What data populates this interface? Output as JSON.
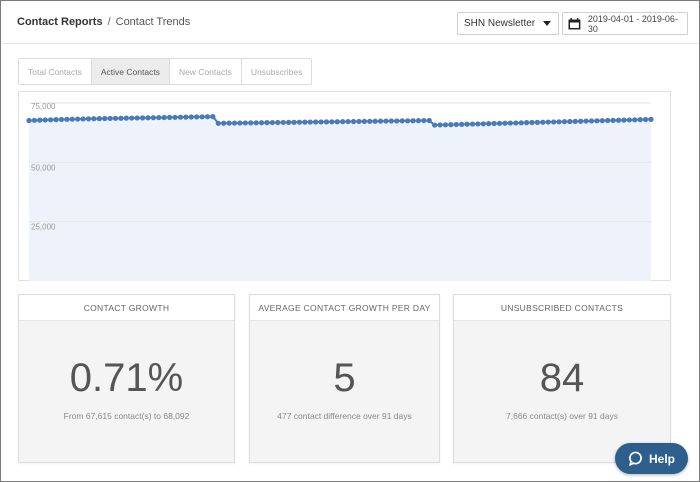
{
  "breadcrumb": {
    "root": "Contact Reports",
    "separator": "/",
    "current": "Contact Trends"
  },
  "filters": {
    "list_selected": "SHN Newsletter",
    "date_range": "2019-04-01 - 2019-06-30"
  },
  "tabs": [
    {
      "label": "Total Contacts",
      "active": false
    },
    {
      "label": "Active Contacts",
      "active": true
    },
    {
      "label": "New Contacts",
      "active": false
    },
    {
      "label": "Unsubscribes",
      "active": false
    }
  ],
  "chart_data": {
    "type": "line",
    "ylim": [
      0,
      75000
    ],
    "yticks": [
      "75,000",
      "50,000",
      "25,000"
    ],
    "ytick_values": [
      75000,
      50000,
      25000
    ],
    "series": [
      {
        "values": [
          67615,
          67700,
          67780,
          67850,
          67920,
          67990,
          68060,
          68120,
          68180,
          68230,
          68280,
          68330,
          68380,
          68420,
          68460,
          68500,
          68540,
          68580,
          68620,
          68660,
          68700,
          68740,
          68780,
          68820,
          68860,
          68900,
          68940,
          68980,
          69020,
          69060,
          69100,
          69140,
          69180,
          69220,
          69260,
          66450,
          66480,
          66510,
          66540,
          66570,
          66600,
          66630,
          66660,
          66690,
          66720,
          66750,
          66780,
          66810,
          66840,
          66870,
          66900,
          66930,
          66960,
          66990,
          67020,
          67050,
          67080,
          67110,
          67140,
          67170,
          67200,
          67230,
          67260,
          67290,
          67320,
          67350,
          67380,
          67410,
          67440,
          67470,
          67500,
          67530,
          67560,
          67590,
          67620,
          65700,
          65760,
          65820,
          65880,
          65940,
          66000,
          66060,
          66120,
          66180,
          66240,
          66300,
          66360,
          66420,
          66480,
          66540,
          66600,
          66660,
          66720,
          66780,
          66840,
          66900,
          66960,
          67020,
          67080,
          67140,
          67200,
          67260,
          67320,
          67380,
          67440,
          67500,
          67560,
          67620,
          67680,
          67740,
          67800,
          67860,
          67920,
          67980,
          68040,
          68092
        ]
      }
    ],
    "colors": {
      "line": "#4a7ab8",
      "area": "#eef2fb",
      "grid": "#e6e6e6"
    }
  },
  "cards": [
    {
      "title": "Contact Growth",
      "value": "0.71%",
      "sub": "From 67,615 contact(s) to 68,092"
    },
    {
      "title": "Average Contact Growth Per Day",
      "value": "5",
      "sub": "477 contact difference over 91 days"
    },
    {
      "title": "Unsubscribed Contacts",
      "value": "84",
      "sub": "7,666 contact(s) over 91 days"
    }
  ],
  "help": {
    "label": "Help",
    "color": "#2e5f8c"
  },
  "icons": {
    "date_picker": "calendar-icon",
    "dropdown": "caret-down-icon",
    "help": "chat-bubble-icon"
  }
}
